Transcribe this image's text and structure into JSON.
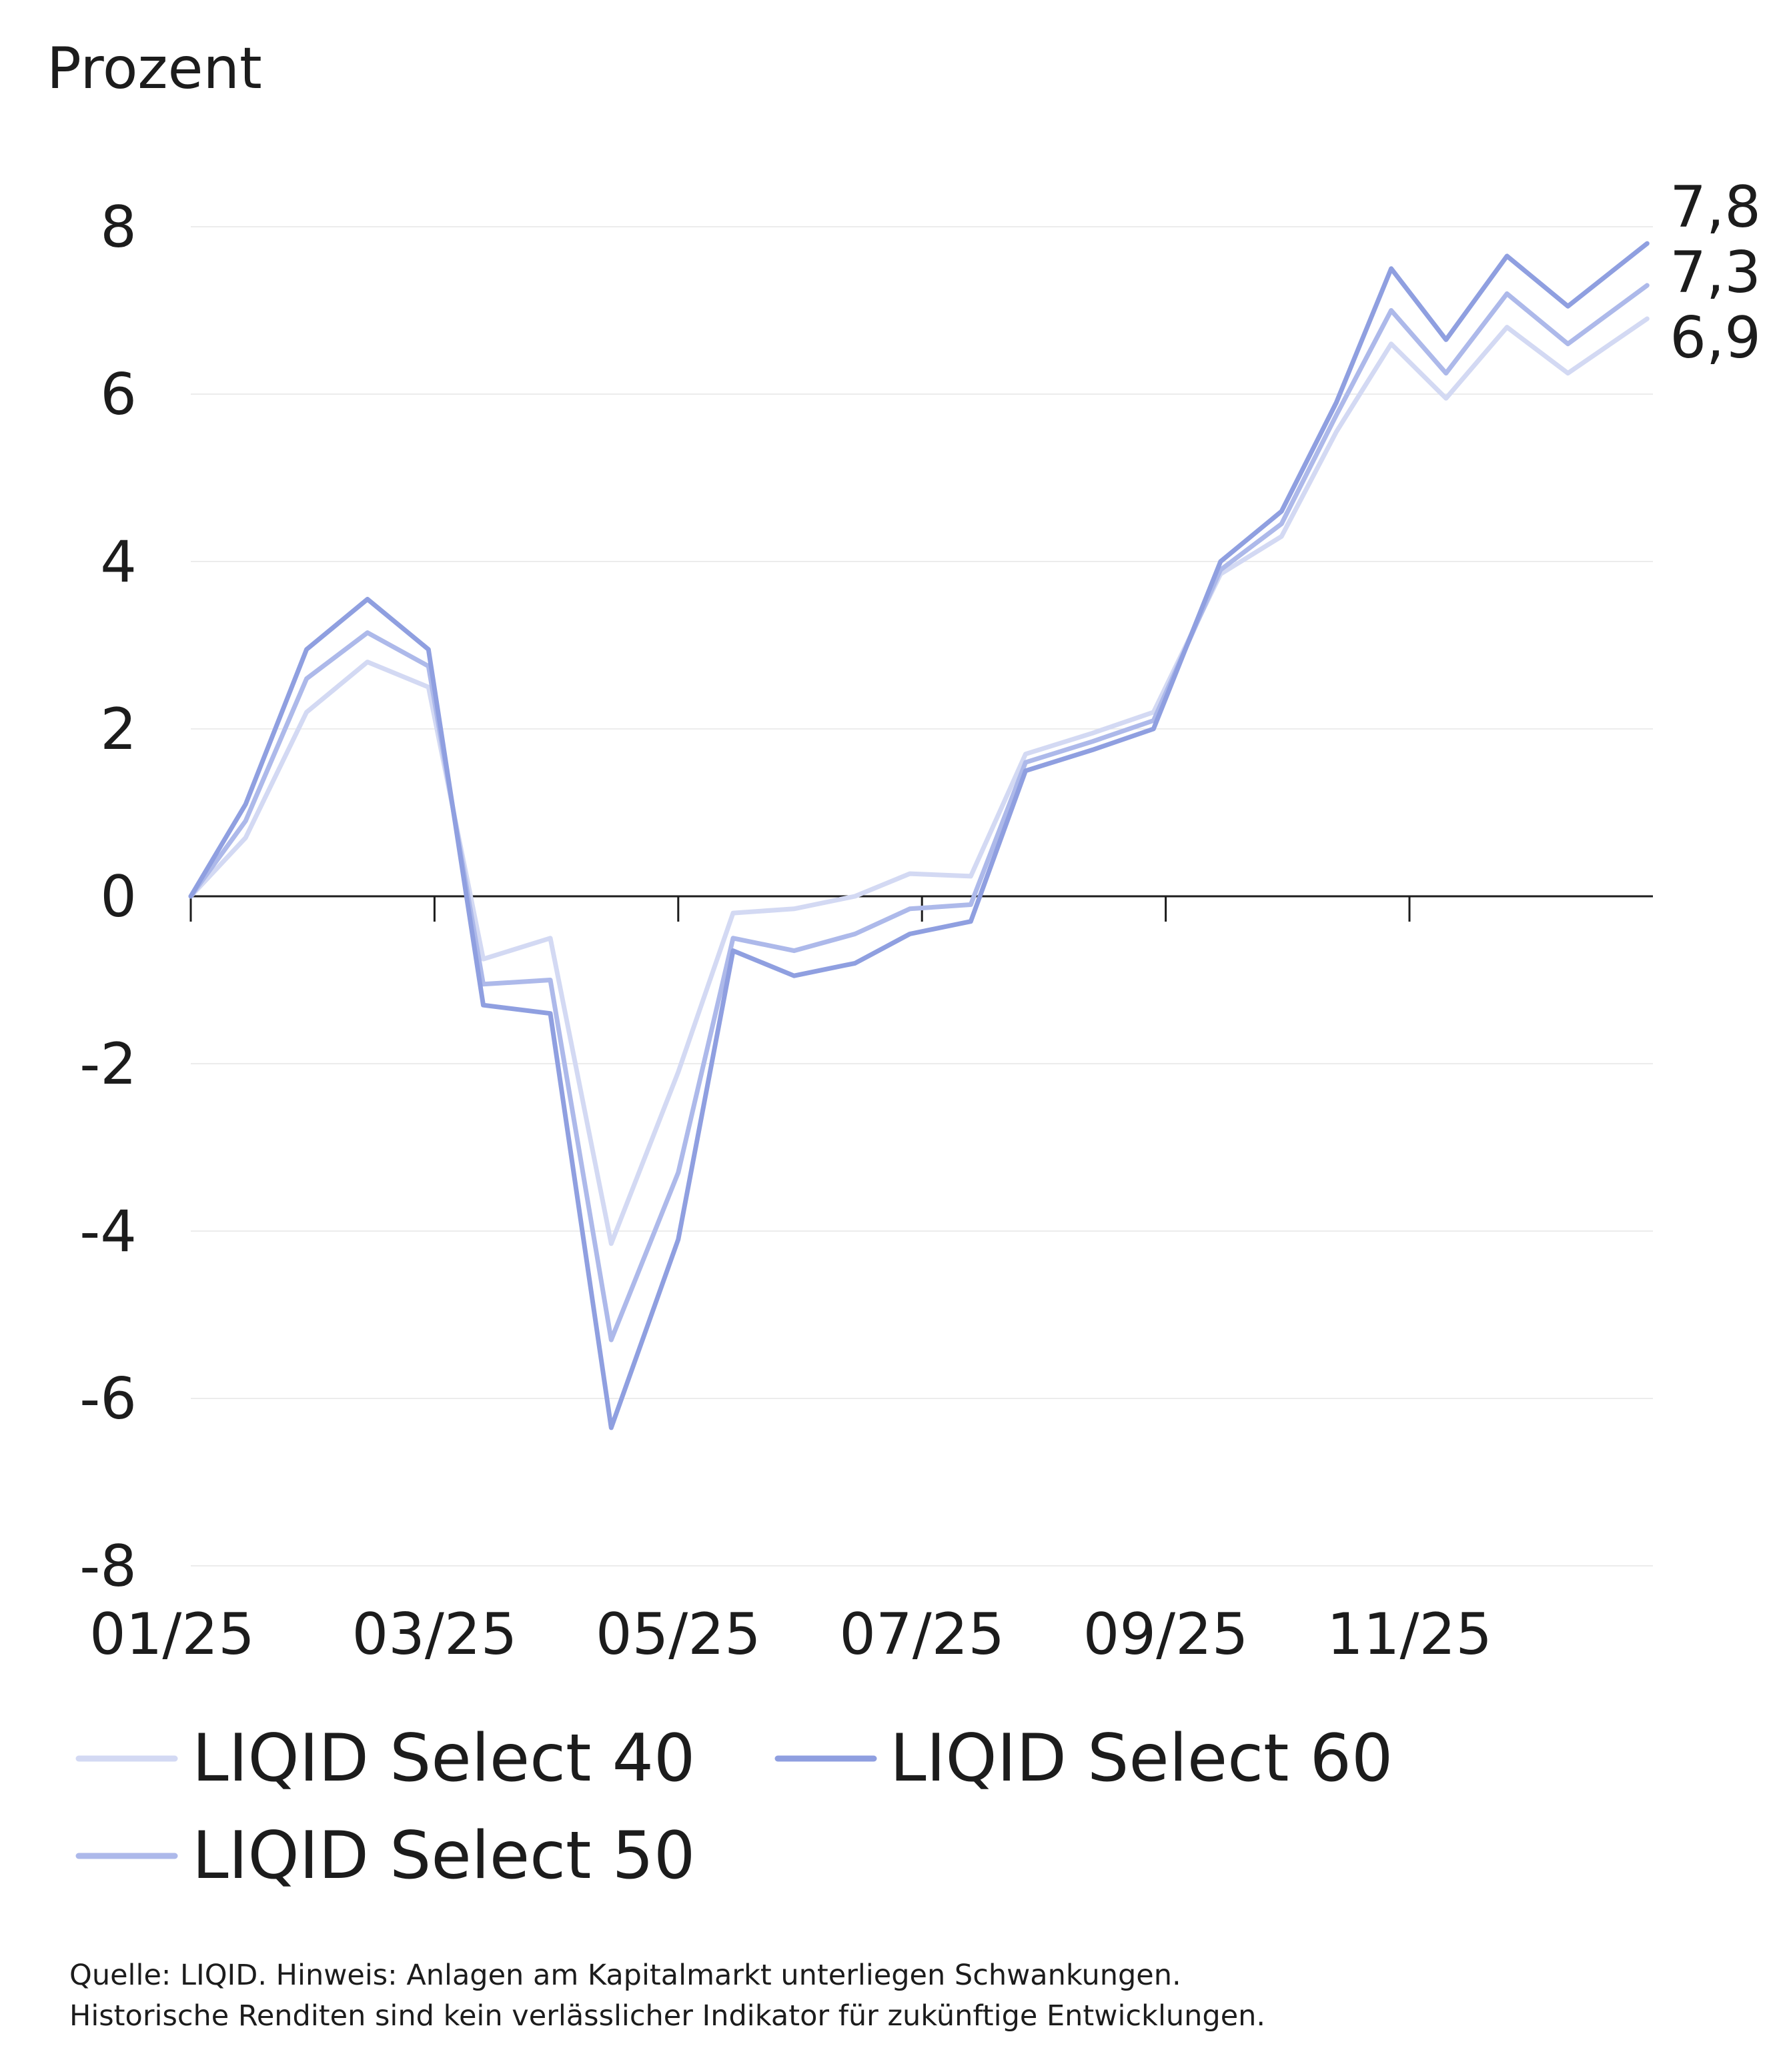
{
  "chart_data": {
    "type": "line",
    "ylabel": "Prozent",
    "ylim": [
      -8,
      8
    ],
    "yticks": [
      "8",
      "6",
      "4",
      "2",
      "0",
      "-2",
      "-4",
      "-6",
      "-8"
    ],
    "ytick_values": [
      8,
      6,
      4,
      2,
      0,
      -2,
      -4,
      -6,
      -8
    ],
    "xticks": [
      "01/25",
      "03/25",
      "05/25",
      "07/25",
      "09/25",
      "11/25"
    ],
    "xtick_months": [
      0,
      2,
      4,
      6,
      8,
      10
    ],
    "x_months": [
      0,
      0.45,
      0.95,
      1.45,
      1.95,
      2.4,
      2.95,
      3.45,
      4.0,
      4.45,
      4.95,
      5.45,
      5.9,
      6.4,
      6.85,
      7.4,
      7.9,
      8.45,
      8.95,
      9.4,
      9.85,
      10.3,
      10.8,
      11.3,
      11.95
    ],
    "series": [
      {
        "name": "LIQID Select 40",
        "color": "#d3d9f3",
        "values": [
          0,
          0.7,
          2.2,
          2.8,
          2.5,
          -0.75,
          -0.5,
          -4.15,
          -2.1,
          -0.2,
          -0.15,
          0.0,
          0.27,
          0.24,
          1.7,
          1.95,
          2.2,
          3.85,
          4.3,
          5.55,
          6.6,
          5.95,
          6.8,
          6.25,
          6.9
        ]
      },
      {
        "name": "LIQID Select 60",
        "color": "#8f9fe0",
        "values": [
          0,
          1.1,
          2.95,
          3.55,
          2.95,
          -1.3,
          -1.4,
          -6.35,
          -4.1,
          -0.65,
          -0.95,
          -0.8,
          -0.45,
          -0.3,
          1.5,
          1.75,
          2.0,
          4.0,
          4.6,
          5.9,
          7.5,
          6.65,
          7.65,
          7.05,
          7.8
        ]
      },
      {
        "name": "LIQID Select 50",
        "color": "#adb9ea",
        "values": [
          0,
          0.9,
          2.6,
          3.15,
          2.75,
          -1.05,
          -1.0,
          -5.3,
          -3.3,
          -0.5,
          -0.65,
          -0.45,
          -0.15,
          -0.1,
          1.6,
          1.85,
          2.1,
          3.9,
          4.45,
          5.75,
          7.0,
          6.25,
          7.2,
          6.6,
          7.3
        ]
      }
    ],
    "end_labels": [
      {
        "text": "7,8",
        "value": 7.8
      },
      {
        "text": "7,3",
        "value": 7.3
      },
      {
        "text": "6,9",
        "value": 6.9
      }
    ],
    "legend": [
      {
        "name": "LIQID Select 40",
        "color": "#d3d9f3"
      },
      {
        "name": "LIQID Select 60",
        "color": "#8f9fe0"
      },
      {
        "name": "LIQID Select 50",
        "color": "#adb9ea"
      }
    ],
    "legend_position": "bottom",
    "grid": true
  },
  "source": {
    "line1": "Quelle: LIQID. Hinweis: Anlagen am Kapitalmarkt unterliegen Schwankungen.",
    "line2": "Historische Renditen sind kein verlässlicher Indikator für zukünftige Entwicklungen."
  }
}
